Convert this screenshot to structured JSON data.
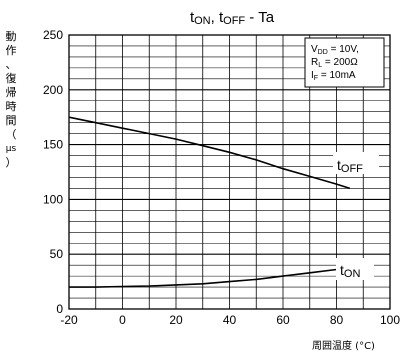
{
  "chart_data": {
    "type": "line",
    "title": {
      "t1": "t",
      "s1": "ON",
      "sep": ", t",
      "s2": "OFF",
      "tail": " - Ta"
    },
    "ylabel_chars": [
      "動",
      "作",
      "、",
      "復",
      "帰",
      "時",
      "間",
      "（",
      "μs",
      "）"
    ],
    "xlabel": "周囲温度 (°C)",
    "xlim": [
      -20,
      100
    ],
    "ylim": [
      0,
      250
    ],
    "x_ticks": [
      "-20",
      "0",
      "20",
      "40",
      "60",
      "80",
      "100"
    ],
    "y_ticks": [
      "0",
      "50",
      "100",
      "150",
      "200",
      "250"
    ],
    "grid": true,
    "conditions": [
      {
        "sym": "V",
        "sub": "DD",
        "rest": " = 10V,"
      },
      {
        "sym": "R",
        "sub": "L",
        "rest": " = 200Ω"
      },
      {
        "sym": "I",
        "sub": "F",
        "rest": " = 10mA"
      }
    ],
    "series": [
      {
        "label_main": "t",
        "label_sub": "OFF",
        "x": [
          -20,
          -10,
          0,
          10,
          20,
          30,
          40,
          50,
          60,
          70,
          80,
          85
        ],
        "y": [
          175,
          170,
          165,
          160,
          155,
          149,
          143,
          136,
          128,
          121,
          114,
          110
        ]
      },
      {
        "label_main": "t",
        "label_sub": "ON",
        "x": [
          -20,
          -10,
          0,
          10,
          20,
          30,
          40,
          50,
          60,
          70,
          80,
          85
        ],
        "y": [
          20,
          20,
          20.5,
          21,
          22,
          23,
          25,
          27,
          30,
          33,
          36,
          37
        ]
      }
    ]
  }
}
